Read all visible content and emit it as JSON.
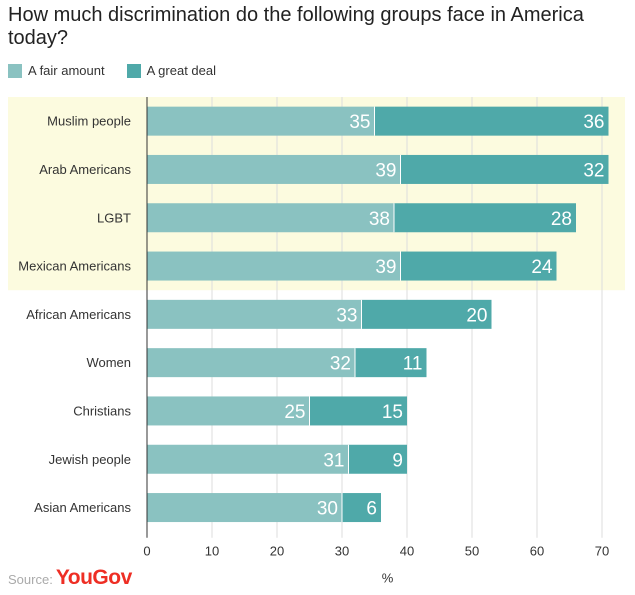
{
  "chart_data": {
    "type": "bar",
    "orientation": "horizontal",
    "stacked": true,
    "title": "How much discrimination do the following groups face in America today?",
    "xlabel": "%",
    "categories": [
      "Muslim people",
      "Arab Americans",
      "LGBT",
      "Mexican Americans",
      "African Americans",
      "Women",
      "Christians",
      "Jewish people",
      "Asian Americans"
    ],
    "series": [
      {
        "name": "A fair amount",
        "values": [
          35,
          39,
          38,
          39,
          33,
          32,
          25,
          31,
          30
        ],
        "color": "#8ac2c1"
      },
      {
        "name": "A great deal",
        "values": [
          36,
          32,
          28,
          24,
          20,
          11,
          15,
          9,
          6
        ],
        "color": "#4fa9a9"
      }
    ],
    "highlighted_categories": [
      "Muslim people",
      "Arab Americans",
      "LGBT",
      "Mexican Americans"
    ],
    "highlight_color": "#fcfbdf",
    "xlim": [
      0,
      73
    ],
    "xticks": [
      0,
      10,
      20,
      30,
      40,
      50,
      60,
      70
    ],
    "grid": true,
    "legend_position": "top-left"
  },
  "source": {
    "label": "Source:",
    "logo_text": "YouGov",
    "logo_color": "#ee2e24"
  }
}
